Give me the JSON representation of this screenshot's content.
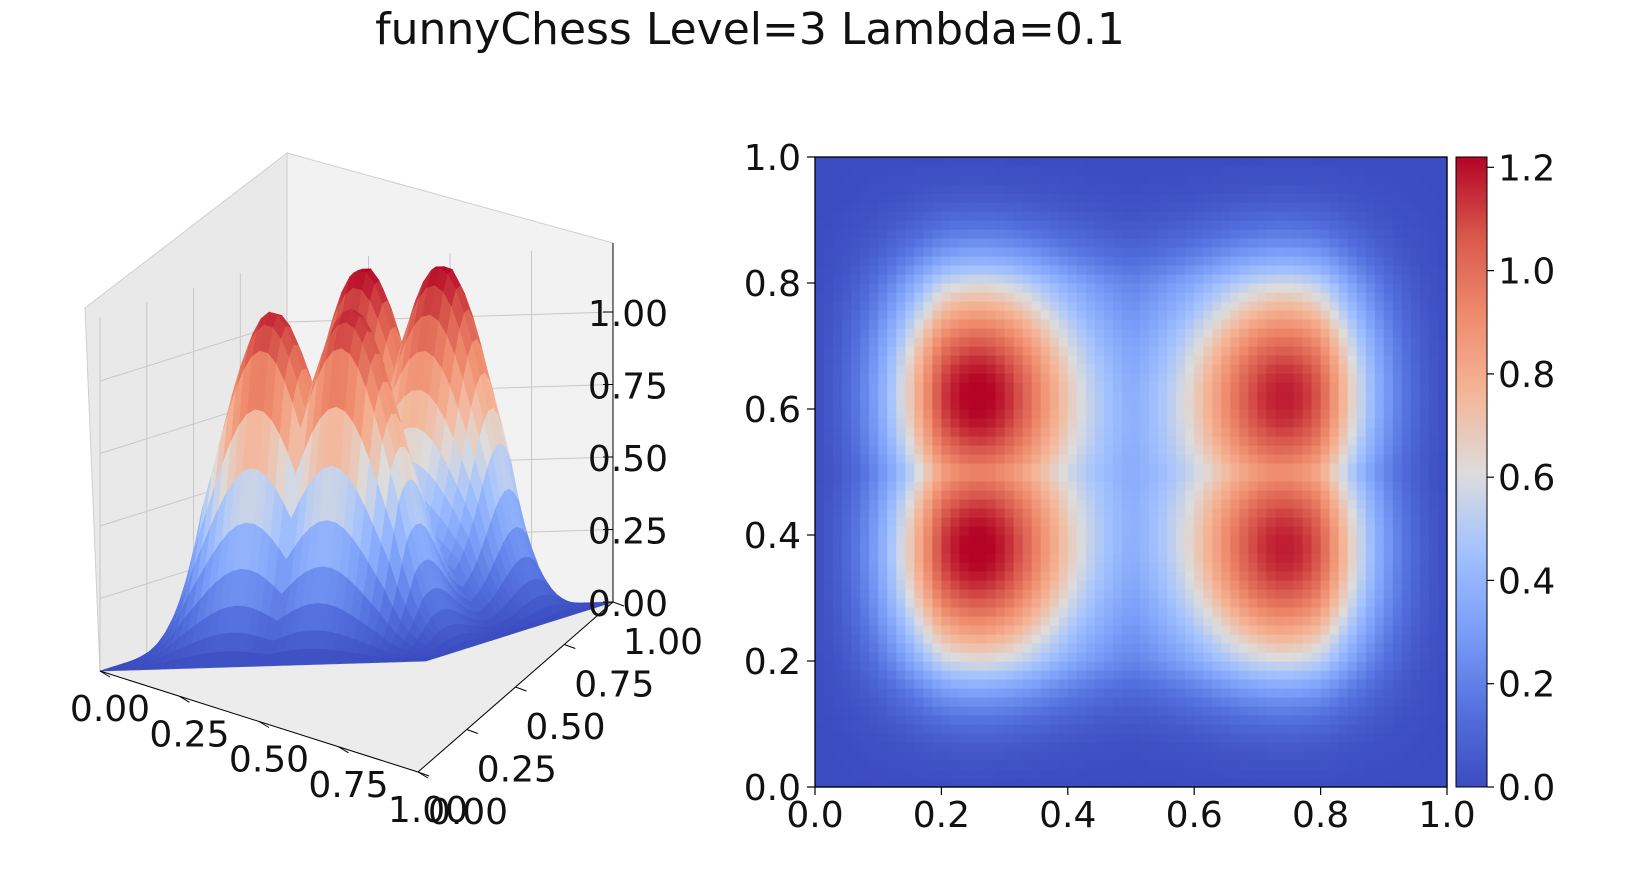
{
  "title": "funnyChess Level=3 Lambda=0.1",
  "chart_data": [
    {
      "type": "surface3d",
      "title": "",
      "x_ticks": [
        "0.00",
        "0.25",
        "0.50",
        "0.75",
        "1.00"
      ],
      "y_ticks": [
        "0.00",
        "0.25",
        "0.50",
        "0.75",
        "1.00"
      ],
      "z_ticks": [
        "0.00",
        "0.25",
        "0.50",
        "0.75",
        "1.00"
      ],
      "xlim": [
        0,
        1
      ],
      "ylim": [
        0,
        1
      ],
      "zlim": [
        0,
        1.22
      ],
      "colormap": "coolwarm",
      "peaks": [
        {
          "x": 0.25,
          "y": 0.375,
          "z": 1.22
        },
        {
          "x": 0.25,
          "y": 0.625,
          "z": 1.22
        },
        {
          "x": 0.75,
          "y": 0.375,
          "z": 1.15
        },
        {
          "x": 0.75,
          "y": 0.625,
          "z": 1.15
        }
      ]
    },
    {
      "type": "heatmap",
      "title": "",
      "x_ticks": [
        "0.0",
        "0.2",
        "0.4",
        "0.6",
        "0.8",
        "1.0"
      ],
      "y_ticks": [
        "0.0",
        "0.2",
        "0.4",
        "0.6",
        "0.8",
        "1.0"
      ],
      "xlim": [
        0,
        1
      ],
      "ylim": [
        0,
        1
      ],
      "colormap": "coolwarm",
      "colorbar_ticks": [
        "0.0",
        "0.2",
        "0.4",
        "0.6",
        "0.8",
        "1.0",
        "1.2"
      ],
      "colorbar_range": [
        0,
        1.22
      ]
    }
  ]
}
